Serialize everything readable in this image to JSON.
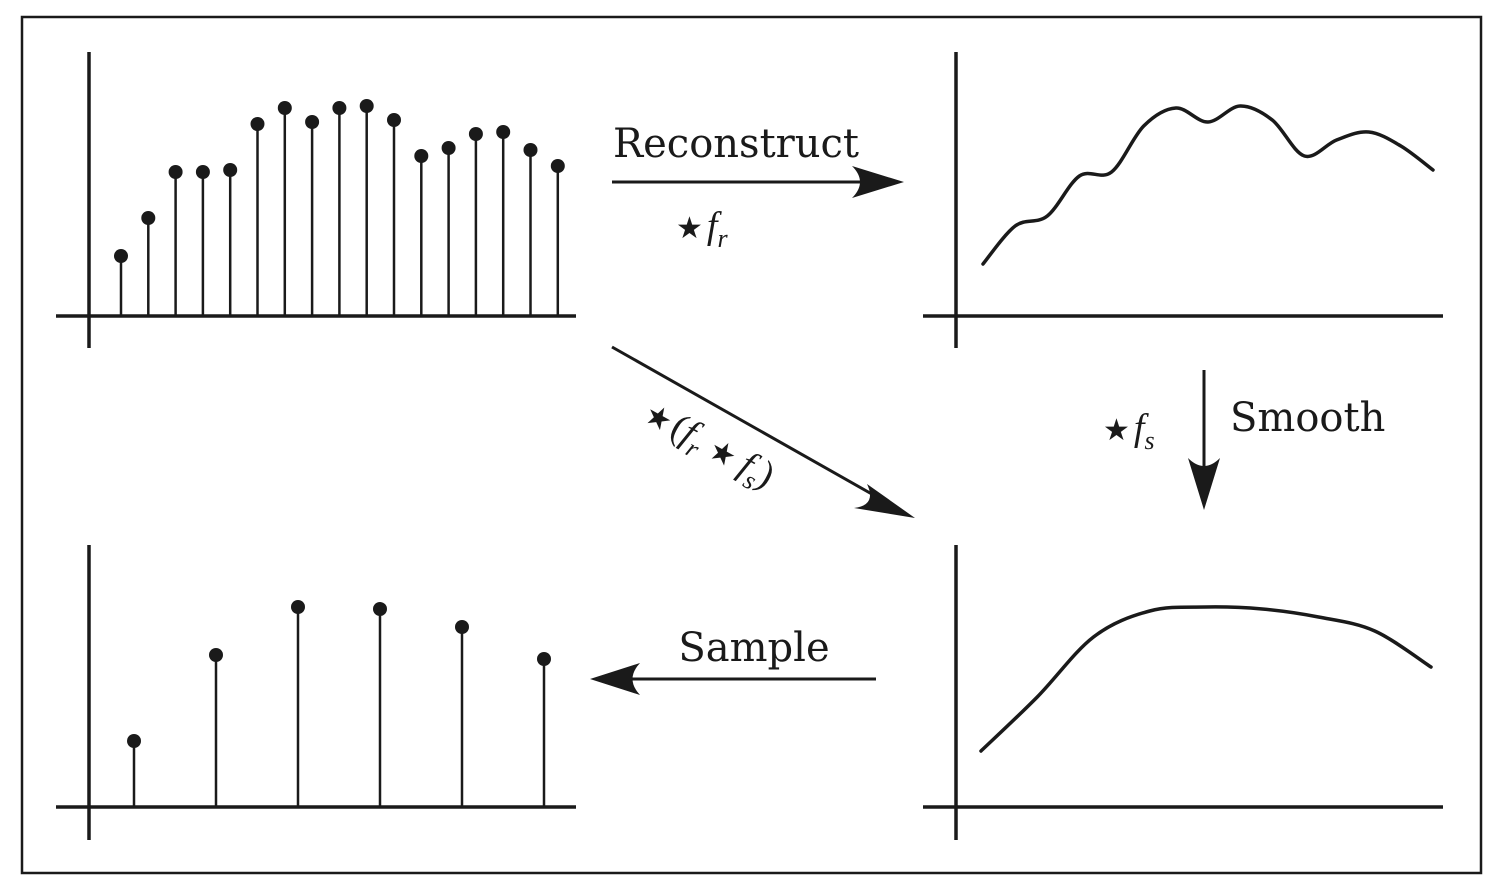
{
  "labels": {
    "reconstruct": "Reconstruct",
    "smooth": "Smooth",
    "sample": "Sample",
    "star": "★",
    "f": "f",
    "r": "r",
    "s": "s",
    "open_paren": "(",
    "close_paren": ")"
  },
  "chart_data": [
    {
      "type": "scatter",
      "title": "",
      "style": "stem",
      "values": [
        0.3,
        0.49,
        0.72,
        0.72,
        0.73,
        0.96,
        1.04,
        0.97,
        1.04,
        1.05,
        0.98,
        0.8,
        0.84,
        0.91,
        0.92,
        0.83,
        0.75
      ],
      "ylim": [
        0,
        1.1
      ]
    },
    {
      "type": "line",
      "title": "",
      "y": [
        0.26,
        0.45,
        0.5,
        0.7,
        0.72,
        0.95,
        1.04,
        0.97,
        1.05,
        0.98,
        0.8,
        0.88,
        0.92,
        0.85,
        0.73
      ],
      "ylim": [
        0,
        1.1
      ]
    },
    {
      "type": "line",
      "title": "",
      "y": [
        0.28,
        0.55,
        0.85,
        0.98,
        1.0,
        0.99,
        0.95,
        0.88,
        0.7
      ],
      "ylim": [
        0,
        1.1
      ]
    },
    {
      "type": "scatter",
      "title": "",
      "style": "stem",
      "values": [
        0.33,
        0.76,
        1.0,
        0.99,
        0.9,
        0.74
      ],
      "ylim": [
        0,
        1.1
      ]
    }
  ]
}
